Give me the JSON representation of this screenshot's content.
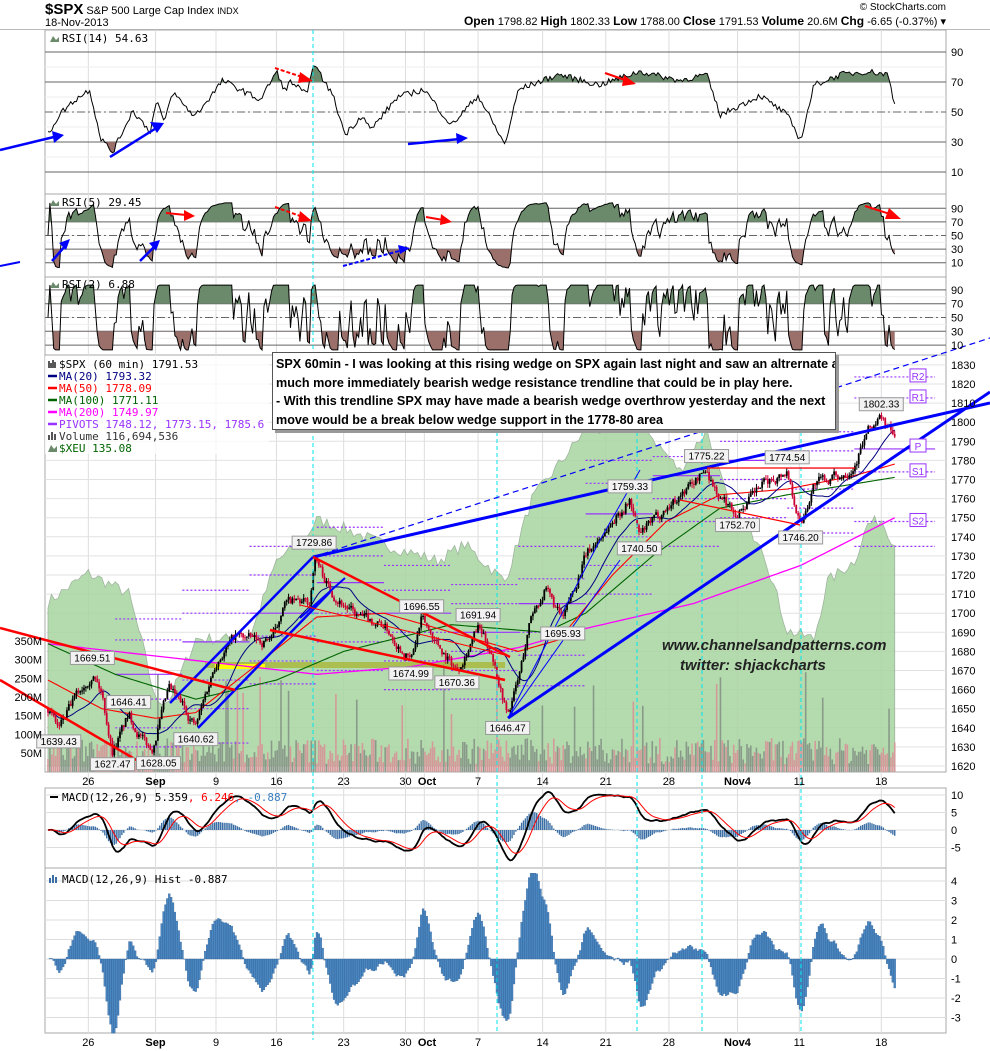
{
  "header": {
    "symbol": "$SPX",
    "name": "S&P 500 Large Cap Index",
    "exchange": "INDX",
    "date": "18-Nov-2013",
    "copyright": "© StockCharts.com",
    "ohlc": [
      {
        "label": "Open",
        "value": "1798.82"
      },
      {
        "label": "High",
        "value": "1802.33"
      },
      {
        "label": "Low",
        "value": "1788.00"
      },
      {
        "label": "Close",
        "value": "1791.53"
      },
      {
        "label": "Volume",
        "value": "20.6M"
      },
      {
        "label": "Chg",
        "value": "-6.65 (-0.37%) ▾"
      }
    ]
  },
  "note": {
    "lines": [
      "SPX 60min - I was looking at this rising wedge on SPX again last night and saw an altrernate an",
      "much more immediately bearish wedge resistance trendline that could be in play here.",
      "- With this trendline SPX may have made a bearish wedge overthrow yesterday and the next",
      "move would be a break below wedge support in the 1778-80 area"
    ]
  },
  "watermark": {
    "site": "www.channelsandpatterns.com",
    "twitter": "twitter: shjackcharts"
  },
  "colors": {
    "ma20": "#000080",
    "ma50": "#ff0000",
    "ma100": "#006400",
    "ma200": "#ff00ff",
    "pivots": "#9933ff",
    "up": "#000000",
    "down": "#cc0033",
    "xeu": "#a8d5a0",
    "trend_blue": "#0000ff",
    "trend_red": "#ff0000",
    "marker": "#00e5ee"
  },
  "chart_data": {
    "type": "line",
    "title": "$SPX S&P 500 Large Cap Index (60 min)",
    "x_unit": "trading day index (0 = 21-Aug-2013)",
    "date_ticks": [
      {
        "label": "26",
        "idx": 3
      },
      {
        "label": "Sep",
        "idx": 8
      },
      {
        "label": "9",
        "idx": 12.5
      },
      {
        "label": "16",
        "idx": 17
      },
      {
        "label": "23",
        "idx": 22
      },
      {
        "label": "30",
        "idx": 26.6
      },
      {
        "label": "Oct",
        "idx": 28
      },
      {
        "label": "7",
        "idx": 32
      },
      {
        "label": "14",
        "idx": 36.8
      },
      {
        "label": "21",
        "idx": 41.5
      },
      {
        "label": "28",
        "idx": 46.2
      },
      {
        "label": "Nov4",
        "idx": 51.3
      },
      {
        "label": "11",
        "idx": 55.9
      },
      {
        "label": "18",
        "idx": 62
      }
    ],
    "price": {
      "ylim": [
        1615,
        1835
      ],
      "ticks": [
        1620,
        1630,
        1640,
        1650,
        1660,
        1670,
        1680,
        1690,
        1700,
        1710,
        1720,
        1730,
        1740,
        1750,
        1760,
        1770,
        1780,
        1790,
        1800,
        1810,
        1820,
        1830
      ],
      "keypoints": [
        [
          0,
          1650
        ],
        [
          0.8,
          1639.43
        ],
        [
          2,
          1655
        ],
        [
          3.3,
          1669.51
        ],
        [
          4,
          1658
        ],
        [
          4.8,
          1627.47
        ],
        [
          6,
          1646.41
        ],
        [
          7,
          1634
        ],
        [
          7.7,
          1628.05
        ],
        [
          9,
          1660
        ],
        [
          10,
          1652
        ],
        [
          11,
          1640.62
        ],
        [
          12.5,
          1675
        ],
        [
          14,
          1688
        ],
        [
          16,
          1685
        ],
        [
          17,
          1690
        ],
        [
          17.5,
          1706
        ],
        [
          19.5,
          1705
        ],
        [
          19.8,
          1729.86
        ],
        [
          21,
          1712
        ],
        [
          23,
          1698
        ],
        [
          25,
          1694
        ],
        [
          27,
          1674.99
        ],
        [
          27.8,
          1696.55
        ],
        [
          29,
          1684
        ],
        [
          30.4,
          1670.36
        ],
        [
          32,
          1691.94
        ],
        [
          33,
          1680
        ],
        [
          34.2,
          1646.47
        ],
        [
          35,
          1665
        ],
        [
          36,
          1700
        ],
        [
          37,
          1712
        ],
        [
          38.3,
          1695.93
        ],
        [
          40,
          1730
        ],
        [
          42,
          1748
        ],
        [
          43.3,
          1759.33
        ],
        [
          44,
          1740.5
        ],
        [
          46,
          1755
        ],
        [
          47.5,
          1765
        ],
        [
          49,
          1775.22
        ],
        [
          50,
          1760
        ],
        [
          51.3,
          1752.7
        ],
        [
          53,
          1766
        ],
        [
          55,
          1774.54
        ],
        [
          56,
          1746.2
        ],
        [
          57,
          1768
        ],
        [
          59,
          1772
        ],
        [
          60,
          1778
        ],
        [
          61,
          1795
        ],
        [
          62,
          1802.33
        ],
        [
          63,
          1791.53
        ]
      ],
      "labels": [
        {
          "text": "1639.43",
          "idx": 0.8,
          "price": 1639.43,
          "pos": "below"
        },
        {
          "text": "1669.51",
          "idx": 3.3,
          "price": 1669.51,
          "pos": "above"
        },
        {
          "text": "1627.47",
          "idx": 4.8,
          "price": 1627.47,
          "pos": "below"
        },
        {
          "text": "1646.41",
          "idx": 6,
          "price": 1646.41,
          "pos": "above"
        },
        {
          "text": "1628.05",
          "idx": 7.7,
          "price": 1628.05,
          "pos": "below"
        },
        {
          "text": "1640.62",
          "idx": 11,
          "price": 1640.62,
          "pos": "below"
        },
        {
          "text": "1729.86",
          "idx": 19.8,
          "price": 1729.86,
          "pos": "above"
        },
        {
          "text": "1674.99",
          "idx": 27,
          "price": 1674.99,
          "pos": "below"
        },
        {
          "text": "1696.55",
          "idx": 27.8,
          "price": 1696.55,
          "pos": "above"
        },
        {
          "text": "1670.36",
          "idx": 30.4,
          "price": 1670.36,
          "pos": "below"
        },
        {
          "text": "1691.94",
          "idx": 32,
          "price": 1691.94,
          "pos": "above"
        },
        {
          "text": "1646.47",
          "idx": 34.2,
          "price": 1646.47,
          "pos": "below"
        },
        {
          "text": "1695.93",
          "idx": 38.3,
          "price": 1695.93,
          "pos": "below"
        },
        {
          "text": "1759.33",
          "idx": 43.3,
          "price": 1759.33,
          "pos": "above"
        },
        {
          "text": "1740.50",
          "idx": 44,
          "price": 1740.5,
          "pos": "below"
        },
        {
          "text": "1775.22",
          "idx": 49,
          "price": 1775.22,
          "pos": "above"
        },
        {
          "text": "1752.70",
          "idx": 51.3,
          "price": 1752.7,
          "pos": "below"
        },
        {
          "text": "1774.54",
          "idx": 55,
          "price": 1774.54,
          "pos": "above"
        },
        {
          "text": "1746.20",
          "idx": 56,
          "price": 1746.2,
          "pos": "below"
        },
        {
          "text": "1802.33",
          "idx": 62,
          "price": 1802.33,
          "pos": "above"
        }
      ],
      "pivot_markers": [
        {
          "text": "R2",
          "price": 1823.7
        },
        {
          "text": "R1",
          "price": 1812.7
        },
        {
          "text": "P",
          "price": 1787
        },
        {
          "text": "S1",
          "price": 1774
        },
        {
          "text": "S2",
          "price": 1748
        }
      ],
      "ma50": [
        [
          0,
          1665
        ],
        [
          4,
          1650
        ],
        [
          8,
          1645
        ],
        [
          11,
          1648
        ],
        [
          15,
          1670
        ],
        [
          20,
          1698
        ],
        [
          25,
          1700
        ],
        [
          30,
          1690
        ],
        [
          35,
          1680
        ],
        [
          38,
          1686
        ],
        [
          42,
          1720
        ],
        [
          46,
          1748
        ],
        [
          50,
          1762
        ],
        [
          55,
          1765
        ],
        [
          60,
          1772
        ],
        [
          63,
          1778.09
        ]
      ],
      "ma100": [
        [
          0,
          1684
        ],
        [
          5,
          1668
        ],
        [
          11,
          1655
        ],
        [
          17,
          1665
        ],
        [
          22,
          1680
        ],
        [
          30,
          1694
        ],
        [
          37,
          1690
        ],
        [
          40,
          1700
        ],
        [
          45,
          1730
        ],
        [
          50,
          1755
        ],
        [
          55,
          1762
        ],
        [
          63,
          1771.11
        ]
      ],
      "ma200": [
        [
          0,
          1684
        ],
        [
          10,
          1676
        ],
        [
          20,
          1668
        ],
        [
          27,
          1672
        ],
        [
          35,
          1682
        ],
        [
          40,
          1692
        ],
        [
          48,
          1705
        ],
        [
          56,
          1725
        ],
        [
          63,
          1749.97
        ]
      ],
      "xeu_level": [
        [
          0,
          0.4
        ],
        [
          3,
          0.47
        ],
        [
          6,
          0.42
        ],
        [
          7,
          0.3
        ],
        [
          8,
          0.16
        ],
        [
          9,
          0.16
        ],
        [
          11,
          0.31
        ],
        [
          15,
          0.31
        ],
        [
          17,
          0.5
        ],
        [
          19,
          0.55
        ],
        [
          20,
          0.6
        ],
        [
          22,
          0.58
        ],
        [
          25,
          0.54
        ],
        [
          29,
          0.5
        ],
        [
          31,
          0.54
        ],
        [
          34,
          0.45
        ],
        [
          36,
          0.65
        ],
        [
          40,
          0.82
        ],
        [
          42,
          0.82
        ],
        [
          44,
          0.87
        ],
        [
          45,
          0.8
        ],
        [
          47,
          0.72
        ],
        [
          49,
          0.82
        ],
        [
          51,
          0.6
        ],
        [
          53,
          0.55
        ],
        [
          55,
          0.33
        ],
        [
          57,
          0.31
        ],
        [
          58,
          0.45
        ],
        [
          60,
          0.5
        ],
        [
          61,
          0.59
        ],
        [
          62,
          0.6
        ],
        [
          63,
          0.54
        ]
      ]
    },
    "volume": {
      "ticks": [
        "50M",
        "100M",
        "150M",
        "200M",
        "250M",
        "300M",
        "350M"
      ],
      "tick_values": [
        50,
        100,
        150,
        200,
        250,
        300,
        350
      ]
    },
    "rsi14": {
      "label": "RSI(14) 54.63",
      "levels": [
        90,
        70,
        50,
        30,
        10
      ],
      "keypoints": [
        [
          0,
          35
        ],
        [
          0.9,
          49
        ],
        [
          2,
          58
        ],
        [
          3.1,
          65
        ],
        [
          3.9,
          33
        ],
        [
          4.8,
          23
        ],
        [
          6.3,
          51
        ],
        [
          7.6,
          37
        ],
        [
          8.1,
          58
        ],
        [
          8.6,
          43
        ],
        [
          9.3,
          63
        ],
        [
          10.9,
          47
        ],
        [
          11.8,
          57
        ],
        [
          13,
          71
        ],
        [
          15.8,
          58
        ],
        [
          17,
          77
        ],
        [
          17.7,
          63
        ],
        [
          18,
          71
        ],
        [
          19.3,
          61
        ],
        [
          19.7,
          83
        ],
        [
          21.2,
          61
        ],
        [
          22.1,
          35
        ],
        [
          23.4,
          48
        ],
        [
          24,
          38
        ],
        [
          26,
          60
        ],
        [
          28,
          65
        ],
        [
          30,
          41
        ],
        [
          32,
          61
        ],
        [
          34,
          28
        ],
        [
          35,
          65
        ],
        [
          38,
          75
        ],
        [
          41,
          68
        ],
        [
          44,
          77
        ],
        [
          47,
          71
        ],
        [
          49,
          75
        ],
        [
          50,
          48
        ],
        [
          53,
          61
        ],
        [
          55,
          48
        ],
        [
          56,
          31
        ],
        [
          57,
          68
        ],
        [
          59,
          75
        ],
        [
          61,
          77
        ],
        [
          62.5,
          75
        ],
        [
          63,
          54.63
        ]
      ]
    },
    "rsi5": {
      "label": "RSI(5) 29.45",
      "levels": [
        90,
        70,
        50,
        30,
        10
      ],
      "last": 29.45
    },
    "rsi2": {
      "label": "RSI(2) 6.88",
      "levels": [
        90,
        70,
        50,
        30,
        10
      ],
      "last": 6.88
    },
    "macd": {
      "label_name": "MACD(12,26,9)",
      "macd": "5.359",
      "signal": "6.246",
      "hist": "-0.887",
      "ticks": [
        10,
        5,
        0,
        -5
      ]
    },
    "macd_hist": {
      "label": "MACD(12,26,9) Hist -0.887",
      "ticks": [
        4,
        3,
        2,
        1,
        0,
        -1,
        -2,
        -3
      ]
    }
  },
  "legend": [
    {
      "text": "$SPX (60 min) 1791.53",
      "color": "#000000"
    },
    {
      "text": "MA(20) 1793.32",
      "color": "#000080"
    },
    {
      "text": "MA(50) 1778.09",
      "color": "#ff0000"
    },
    {
      "text": "MA(100) 1771.11",
      "color": "#006400"
    },
    {
      "text": "MA(200) 1749.97",
      "color": "#ff00ff"
    },
    {
      "text": "PIVOTS 1748.12, 1773.15, 1785.6",
      "color": "#9933ff"
    },
    {
      "text": "Volume 116,694,536",
      "color": "#333333"
    },
    {
      "text": "$XEU  135.08",
      "color": "#006400"
    }
  ]
}
